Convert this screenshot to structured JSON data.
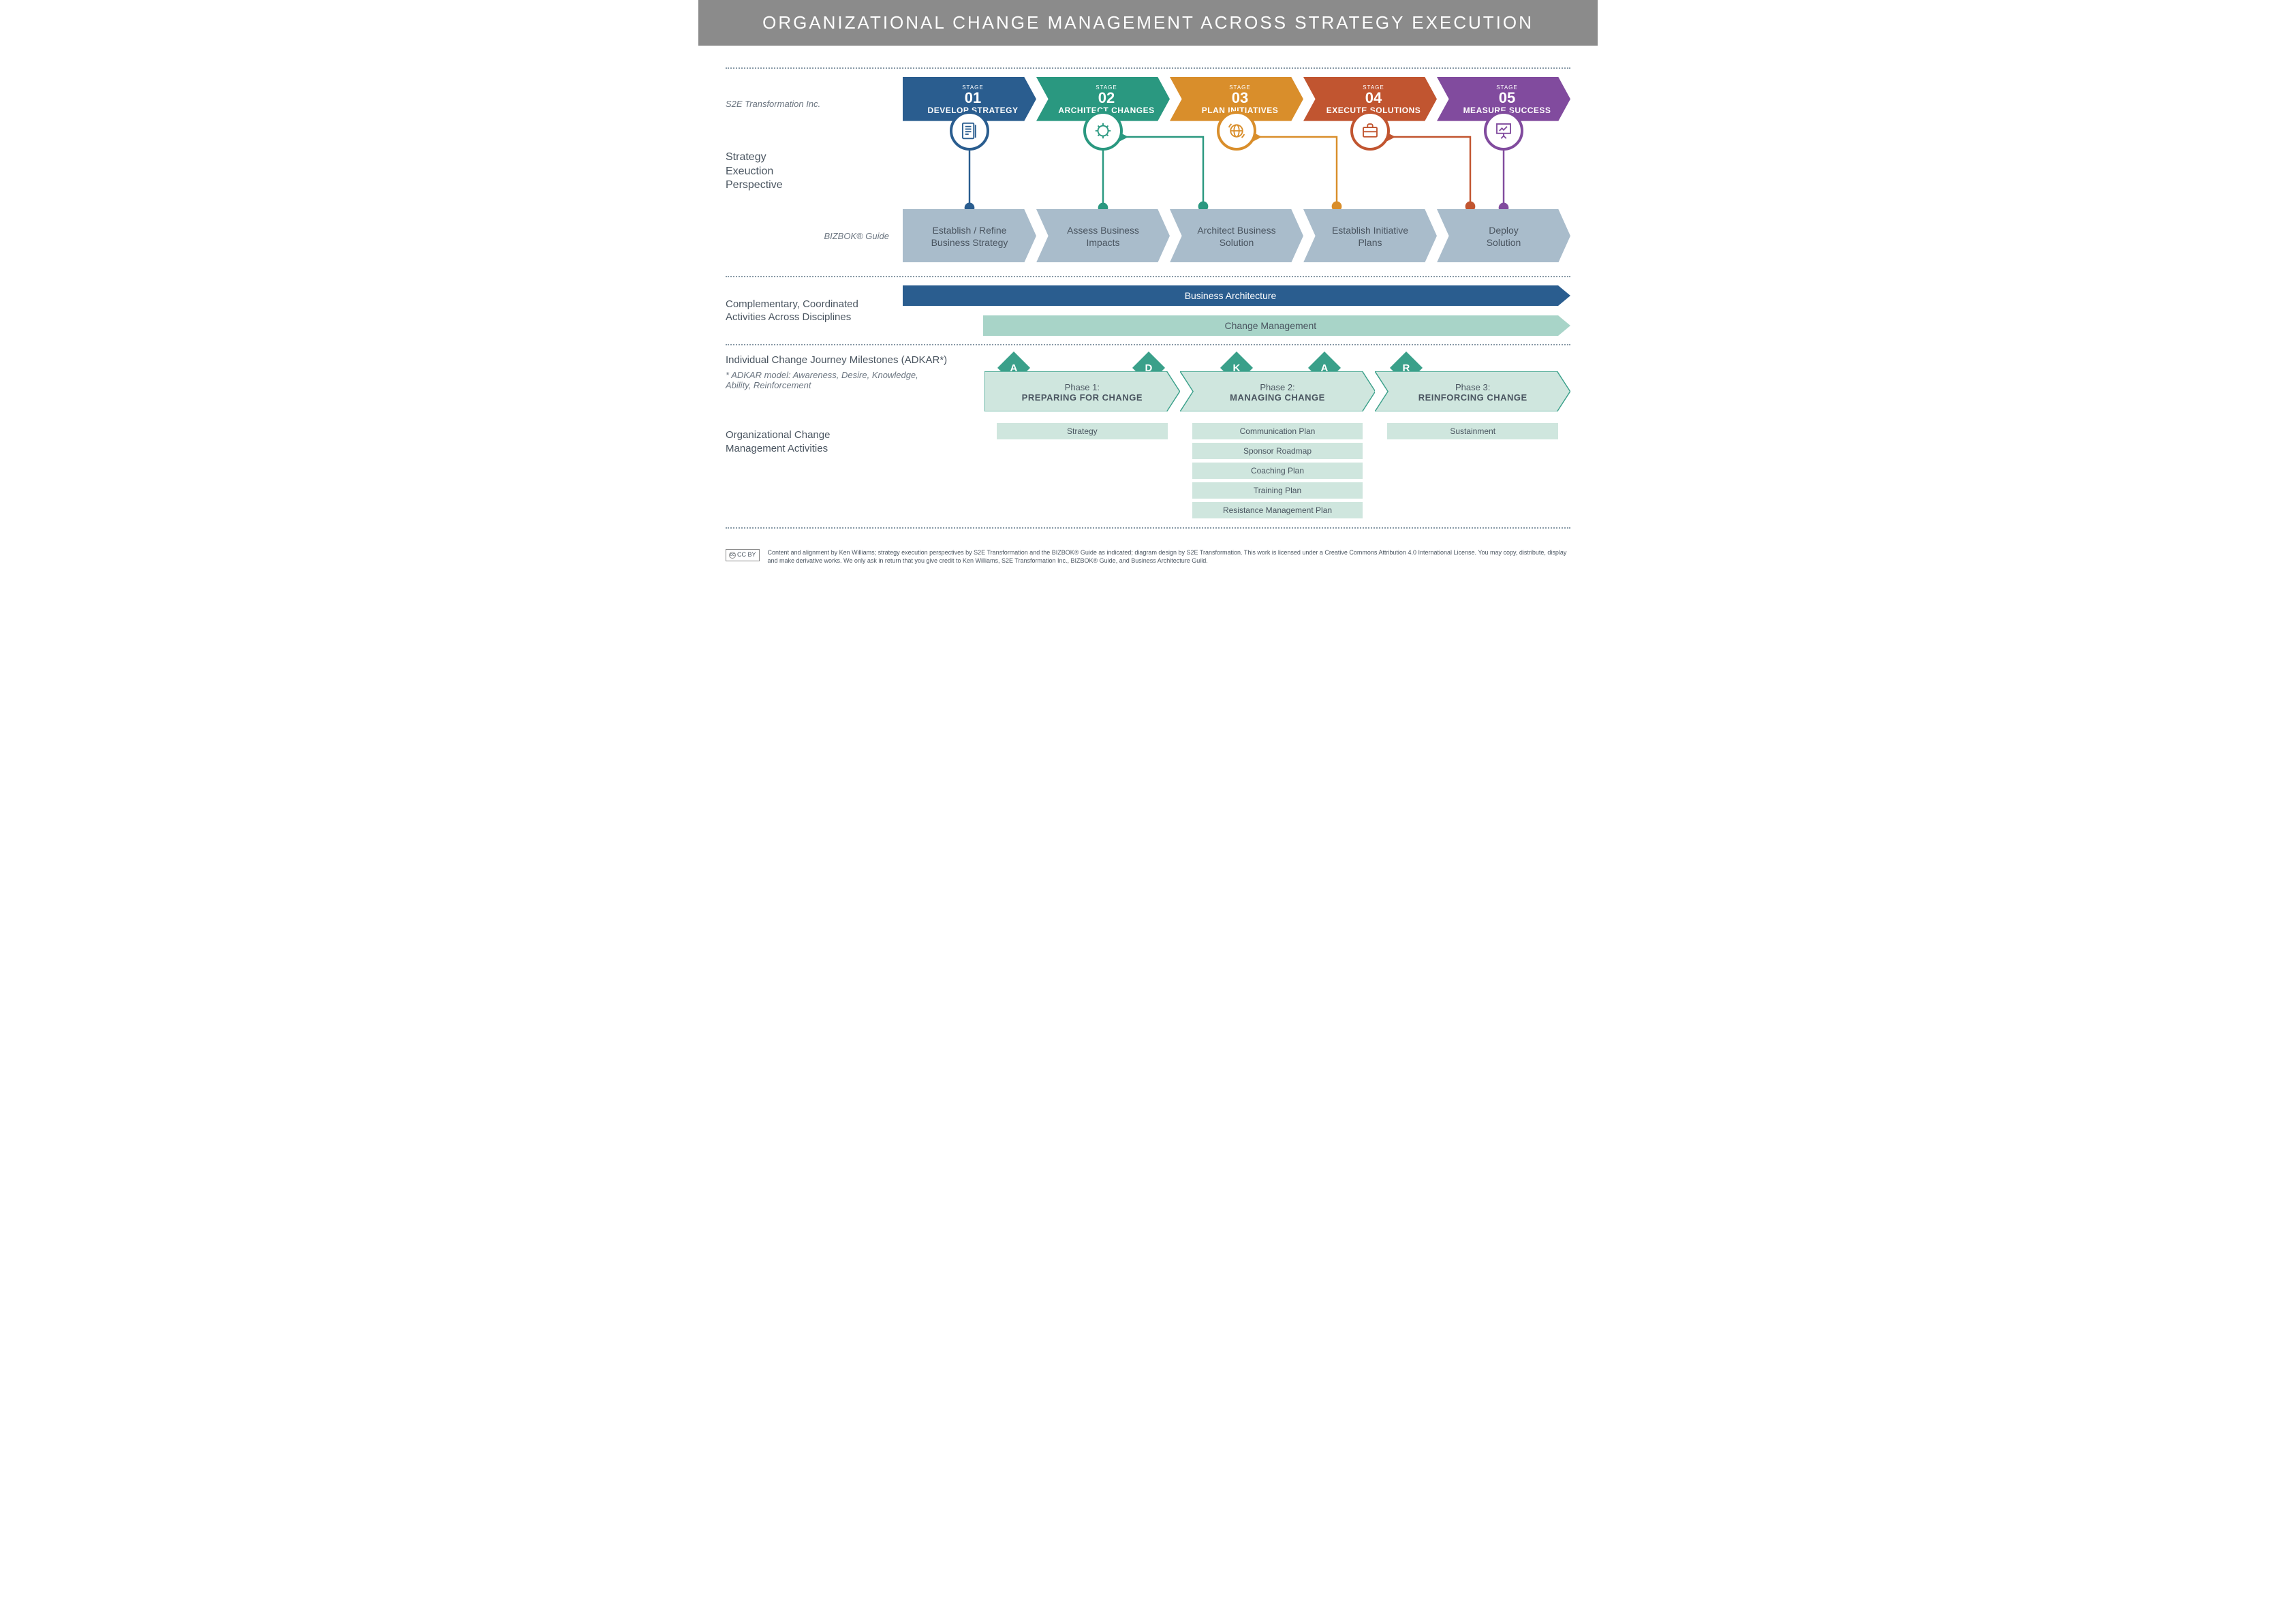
{
  "title": "ORGANIZATIONAL CHANGE MANAGEMENT ACROSS STRATEGY EXECUTION",
  "colors": {
    "stage1": "#2a5d8f",
    "stage2": "#2a9880",
    "stage3": "#d98e2b",
    "stage4": "#c15530",
    "stage5": "#814b9e",
    "bizbok": "#a9bccb",
    "ba_arrow": "#2a5d8f",
    "cm_arrow": "#a8d4c8",
    "cm_arrow_text": "#4a5560",
    "adkar_diamond": "#3aa08a",
    "phase_fill": "#cfe6de",
    "phase_border": "#3aa08a",
    "pill": "#cfe6de",
    "header_bg": "#8b8b8b",
    "text": "#4a5560",
    "dotted": "#8899a6"
  },
  "labels": {
    "s2e": "S2E Transformation Inc.",
    "strategy_perspective": "Strategy\nExeuction\nPerspective",
    "bizbok": "BIZBOK® Guide",
    "complementary": "Complementary, Coordinated\nActivities Across Disciplines",
    "adkar_title": "Individual Change Journey Milestones (ADKAR*)",
    "adkar_note": "* ADKAR model: Awareness, Desire, Knowledge,\n  Ability, Reinforcement",
    "ocm_activities": "Organizational Change\nManagement Activities"
  },
  "stages": [
    {
      "num": "01",
      "name": "DEVELOP STRATEGY",
      "color": "#2a5d8f",
      "icon": "document"
    },
    {
      "num": "02",
      "name": "ARCHITECT CHANGES",
      "color": "#2a9880",
      "icon": "brain"
    },
    {
      "num": "03",
      "name": "PLAN INITIATIVES",
      "color": "#d98e2b",
      "icon": "globe"
    },
    {
      "num": "04",
      "name": "EXECUTE SOLUTIONS",
      "color": "#c15530",
      "icon": "briefcase"
    },
    {
      "num": "05",
      "name": "MEASURE SUCCESS",
      "color": "#814b9e",
      "icon": "presentation"
    }
  ],
  "stage_label": "STAGE",
  "bizbok_steps": [
    "Establish / Refine\nBusiness Strategy",
    "Assess Business\nImpacts",
    "Architect Business\nSolution",
    "Establish Initiative\nPlans",
    "Deploy\nSolution"
  ],
  "long_arrows": {
    "ba": "Business Architecture",
    "cm": "Change Management"
  },
  "adkar_letters": [
    "A",
    "D",
    "K",
    "A",
    "R"
  ],
  "adkar_positions_pct": [
    3,
    26,
    41,
    56,
    70
  ],
  "phases": [
    {
      "top": "Phase 1:",
      "bottom": "PREPARING FOR CHANGE"
    },
    {
      "top": "Phase 2:",
      "bottom": "MANAGING CHANGE"
    },
    {
      "top": "Phase 3:",
      "bottom": "REINFORCING CHANGE"
    }
  ],
  "activities": {
    "col1": [
      "Strategy"
    ],
    "col2": [
      "Communication Plan",
      "Sponsor Roadmap",
      "Coaching Plan",
      "Training Plan",
      "Resistance Management Plan"
    ],
    "col3": [
      "Sustainment"
    ]
  },
  "footer": {
    "cc": "CC  BY",
    "text": "Content and alignment by Ken Williams; strategy execution perspectives by S2E Transformation and the BIZBOK® Guide as indicated; diagram design by S2E Transformation. This work is licensed under a Creative Commons Attribution 4.0 International License. You may copy, distribute, display and make derivative works. We only ask in return that you give credit to Ken Williams, S2E Transformation Inc., BIZBOK® Guide,  and Business Architecture Guild."
  }
}
